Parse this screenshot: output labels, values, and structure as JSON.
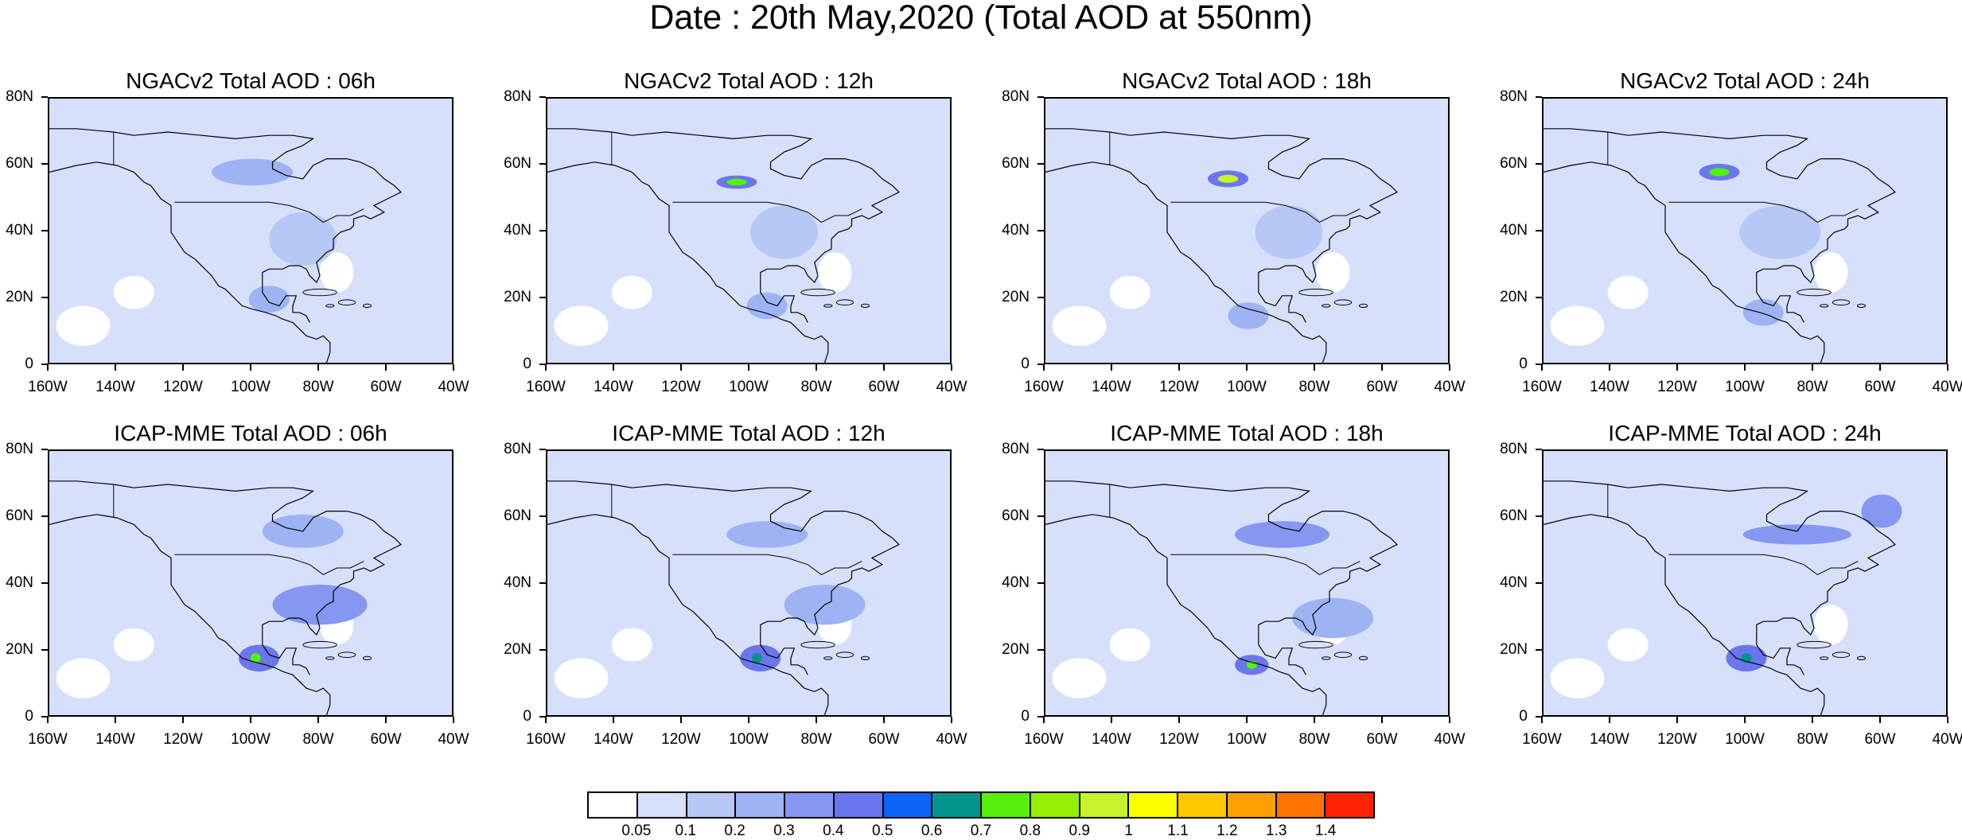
{
  "title": "Date : 20th May,2020 (Total AOD at 550nm)",
  "x_ticks": [
    "160W",
    "140W",
    "120W",
    "100W",
    "80W",
    "60W",
    "40W"
  ],
  "y_ticks": [
    "80N",
    "60N",
    "40N",
    "20N",
    "0"
  ],
  "lon_range": [
    -160,
    -40
  ],
  "lat_range": [
    0,
    80
  ],
  "panels": [
    {
      "title": "NGACv2 Total AOD : 06h",
      "model": "NGACv2",
      "hour": "06h"
    },
    {
      "title": "NGACv2 Total AOD : 12h",
      "model": "NGACv2",
      "hour": "12h"
    },
    {
      "title": "NGACv2 Total AOD : 18h",
      "model": "NGACv2",
      "hour": "18h"
    },
    {
      "title": "NGACv2 Total AOD : 24h",
      "model": "NGACv2",
      "hour": "24h"
    },
    {
      "title": "ICAP-MME Total AOD : 06h",
      "model": "ICAP-MME",
      "hour": "06h"
    },
    {
      "title": "ICAP-MME Total AOD : 12h",
      "model": "ICAP-MME",
      "hour": "12h"
    },
    {
      "title": "ICAP-MME Total AOD : 18h",
      "model": "ICAP-MME",
      "hour": "18h"
    },
    {
      "title": "ICAP-MME Total AOD : 24h",
      "model": "ICAP-MME",
      "hour": "24h"
    }
  ],
  "colorbar": {
    "labels": [
      "0.05",
      "0.1",
      "0.2",
      "0.3",
      "0.4",
      "0.5",
      "0.6",
      "0.7",
      "0.8",
      "0.9",
      "1",
      "1.1",
      "1.2",
      "1.3",
      "1.4"
    ],
    "colors": [
      "#ffffff",
      "#d6e0fb",
      "#b7c8f6",
      "#9db3f4",
      "#8597f0",
      "#6a76ec",
      "#0d64f4",
      "#04948e",
      "#55f00e",
      "#95f004",
      "#c8f22a",
      "#ffff00",
      "#ffc800",
      "#ff9f00",
      "#ff7300",
      "#ff2200"
    ]
  }
}
